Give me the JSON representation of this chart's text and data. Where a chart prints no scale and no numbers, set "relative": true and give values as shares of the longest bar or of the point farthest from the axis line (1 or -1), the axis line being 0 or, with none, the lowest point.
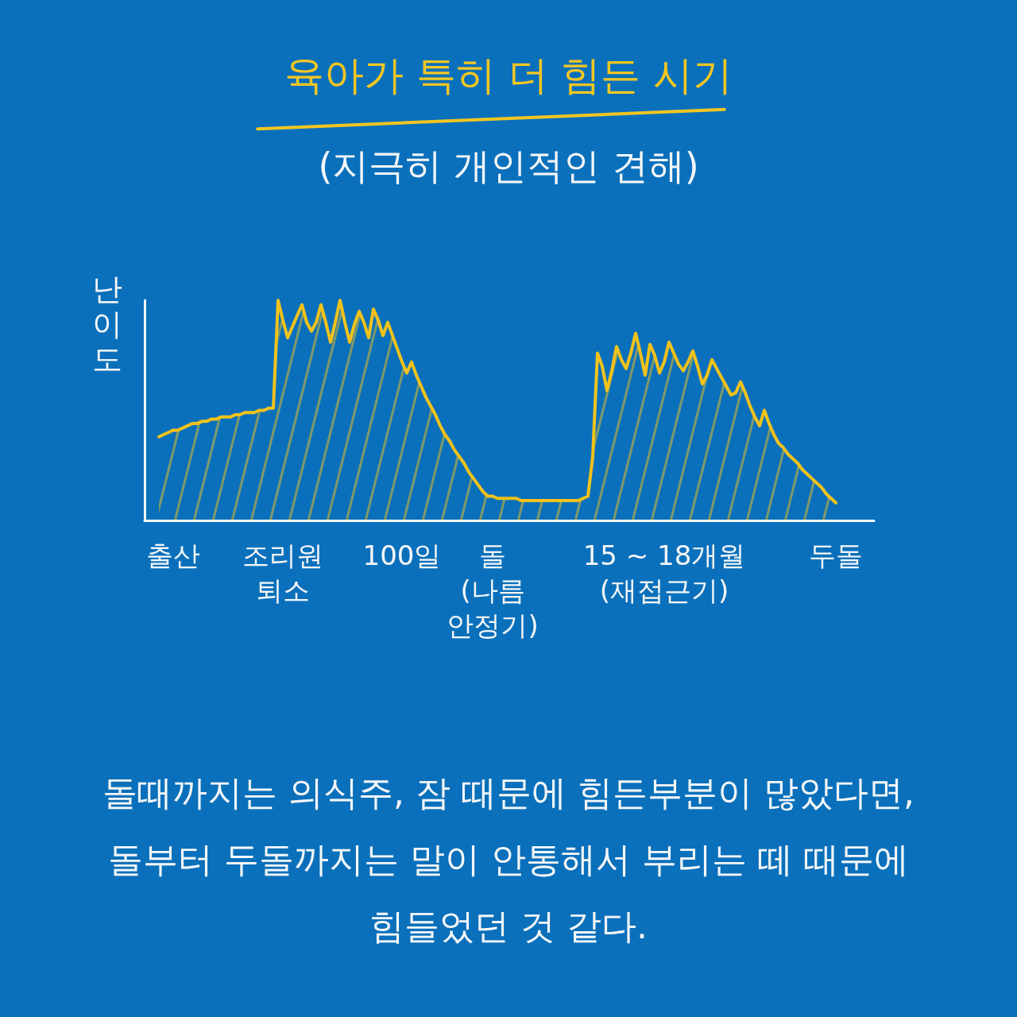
{
  "chart_data": {
    "type": "area",
    "title": "육아가 특히 더 힘든 시기",
    "subtitle": "(지극히 개인적인 견해)",
    "ylabel": "난이도",
    "annotations": [
      "돌때까지는 의식주, 잠 때문에 힘든부분이 많았다면,\n돌부터 두돌까지는 말이 안통해서 부리는 떼 때문에\n힘들었던 것 같다."
    ],
    "relative": true,
    "categories": [
      null,
      null,
      null,
      null,
      null,
      null,
      "출산",
      null,
      null,
      null,
      null,
      null,
      null,
      null,
      null,
      null,
      null,
      null,
      null,
      null,
      null,
      null,
      null,
      null,
      null,
      null,
      null,
      null,
      null,
      "조리원\n퇴소",
      null,
      null,
      null,
      null,
      null,
      null,
      null,
      null,
      null,
      null,
      null,
      null,
      null,
      null,
      null,
      null,
      null,
      null,
      null,
      null,
      null,
      null,
      null,
      null,
      "100일",
      null,
      null,
      null,
      null,
      null,
      null,
      null,
      null,
      null,
      null,
      null,
      null,
      null,
      null,
      null,
      null,
      null,
      null,
      "돌\n(나름\n안정기)",
      null,
      null,
      null,
      null,
      null,
      null,
      null,
      null,
      null,
      null,
      null,
      null,
      null,
      null,
      null,
      null,
      null,
      null,
      null,
      null,
      null,
      null,
      null,
      null,
      null,
      null,
      null,
      null,
      null,
      null,
      null,
      null,
      null,
      null,
      null,
      "15 ~ 18개월\n(재접근기)",
      null,
      null,
      null,
      null,
      null,
      null,
      null,
      null,
      null,
      null,
      null,
      null,
      null,
      null,
      null,
      null,
      null,
      null,
      null,
      null,
      null,
      null,
      null,
      null,
      null,
      null,
      null,
      null,
      null,
      null,
      null,
      null,
      null,
      null,
      null,
      "두돌",
      null,
      null,
      null,
      null,
      null,
      null,
      null,
      null
    ],
    "color": "#f2c21b",
    "values": [
      null,
      null,
      null,
      0.38,
      0.39,
      0.4,
      0.41,
      0.41,
      0.42,
      0.43,
      0.44,
      0.44,
      0.45,
      0.45,
      0.46,
      0.46,
      0.47,
      0.47,
      0.47,
      0.48,
      0.48,
      0.49,
      0.49,
      0.49,
      0.5,
      0.5,
      0.51,
      0.51,
      1.0,
      0.91,
      0.83,
      0.88,
      0.93,
      0.98,
      0.9,
      0.86,
      0.9,
      0.98,
      0.9,
      0.81,
      0.9,
      1.0,
      0.9,
      0.81,
      0.89,
      0.95,
      0.9,
      0.83,
      0.96,
      0.91,
      0.84,
      0.9,
      0.84,
      0.78,
      0.72,
      0.67,
      0.72,
      0.66,
      0.61,
      0.56,
      0.52,
      0.48,
      0.43,
      0.39,
      0.36,
      0.32,
      0.29,
      0.26,
      0.22,
      0.19,
      0.16,
      0.13,
      0.11,
      0.11,
      0.1,
      0.1,
      0.1,
      0.1,
      0.1,
      0.09,
      0.09,
      0.09,
      0.09,
      0.09,
      0.09,
      0.09,
      0.09,
      0.09,
      0.09,
      0.09,
      0.09,
      0.09,
      0.1,
      0.11,
      0.29,
      0.76,
      0.7,
      0.59,
      0.68,
      0.79,
      0.73,
      0.69,
      0.76,
      0.85,
      0.76,
      0.66,
      0.8,
      0.75,
      0.67,
      0.72,
      0.81,
      0.76,
      0.71,
      0.68,
      0.72,
      0.77,
      0.7,
      0.62,
      0.66,
      0.73,
      0.69,
      0.65,
      0.61,
      0.57,
      0.58,
      0.63,
      0.58,
      0.52,
      0.47,
      0.43,
      0.5,
      0.44,
      0.39,
      0.35,
      0.33,
      0.3,
      0.28,
      0.26,
      0.23,
      0.21,
      0.19,
      0.17,
      0.15,
      0.12,
      0.1,
      0.08,
      null,
      null,
      null,
      null,
      null,
      null,
      null,
      null
    ]
  }
}
